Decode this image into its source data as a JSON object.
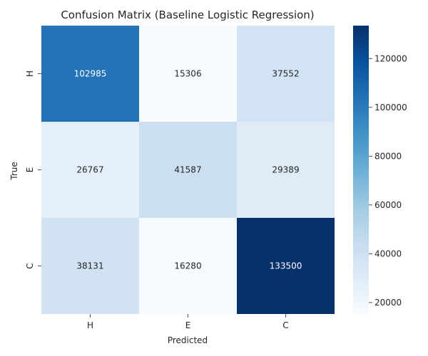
{
  "chart_data": {
    "type": "heatmap",
    "title": "Confusion Matrix (Baseline Logistic Regression)",
    "xlabel": "Predicted",
    "ylabel": "True",
    "x_categories": [
      "H",
      "E",
      "C"
    ],
    "y_categories": [
      "H",
      "E",
      "C"
    ],
    "values": [
      [
        102985,
        15306,
        37552
      ],
      [
        26767,
        41587,
        29389
      ],
      [
        38131,
        16280,
        133500
      ]
    ],
    "colormap": "Blues",
    "color_range": [
      15306,
      133500
    ],
    "colorbar_ticks": [
      20000,
      40000,
      60000,
      80000,
      100000,
      120000
    ],
    "cell_text_dark_color": "#262626",
    "cell_text_light_color": "#ffffff"
  }
}
